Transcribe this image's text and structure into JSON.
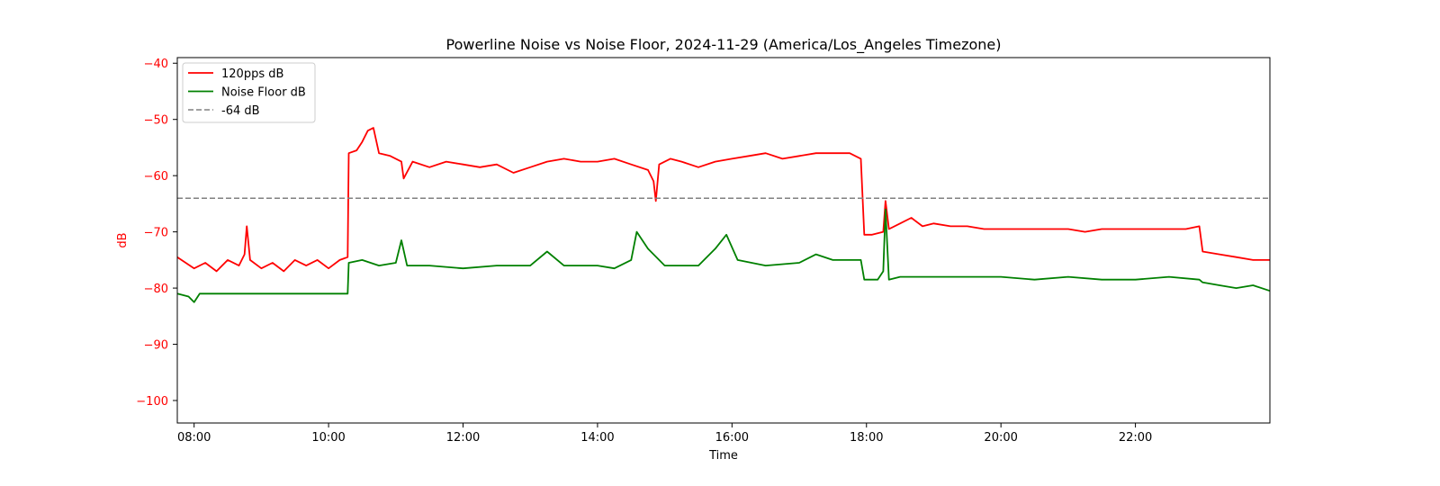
{
  "chart_data": {
    "type": "line",
    "title": "Powerline Noise vs Noise Floor, 2024-11-29 (America/Los_Angeles Timezone)",
    "xlabel": "Time",
    "ylabel": "dB",
    "xlim": [
      "07:45",
      "24:00"
    ],
    "ylim": [
      -104,
      -39
    ],
    "x_ticks": [
      "08:00",
      "10:00",
      "12:00",
      "14:00",
      "16:00",
      "18:00",
      "20:00",
      "22:00"
    ],
    "y_ticks": [
      -40,
      -50,
      -60,
      -70,
      -80,
      -90,
      -100
    ],
    "grid": false,
    "legend_position": "top-left",
    "ylabel_color": "#ff0000",
    "series": [
      {
        "name": "120pps dB",
        "color": "#ff0000",
        "style": "solid",
        "points": [
          [
            "07:45",
            -74.5
          ],
          [
            "08:00",
            -76.5
          ],
          [
            "08:10",
            -75.5
          ],
          [
            "08:20",
            -77
          ],
          [
            "08:30",
            -75
          ],
          [
            "08:40",
            -76
          ],
          [
            "08:45",
            -74
          ],
          [
            "08:47",
            -69
          ],
          [
            "08:50",
            -75
          ],
          [
            "09:00",
            -76.5
          ],
          [
            "09:10",
            -75.5
          ],
          [
            "09:20",
            -77
          ],
          [
            "09:30",
            -75
          ],
          [
            "09:40",
            -76
          ],
          [
            "09:50",
            -75
          ],
          [
            "10:00",
            -76.5
          ],
          [
            "10:10",
            -75
          ],
          [
            "10:17",
            -74.5
          ],
          [
            "10:18",
            -56
          ],
          [
            "10:25",
            -55.5
          ],
          [
            "10:30",
            -54
          ],
          [
            "10:35",
            -52
          ],
          [
            "10:40",
            -51.5
          ],
          [
            "10:45",
            -56
          ],
          [
            "10:55",
            -56.5
          ],
          [
            "11:05",
            -57.5
          ],
          [
            "11:07",
            -60.5
          ],
          [
            "11:15",
            -57.5
          ],
          [
            "11:30",
            -58.5
          ],
          [
            "11:45",
            -57.5
          ],
          [
            "12:00",
            -58
          ],
          [
            "12:15",
            -58.5
          ],
          [
            "12:30",
            -58
          ],
          [
            "12:45",
            -59.5
          ],
          [
            "13:00",
            -58.5
          ],
          [
            "13:15",
            -57.5
          ],
          [
            "13:30",
            -57
          ],
          [
            "13:45",
            -57.5
          ],
          [
            "14:00",
            -57.5
          ],
          [
            "14:15",
            -57
          ],
          [
            "14:30",
            -58
          ],
          [
            "14:45",
            -59
          ],
          [
            "14:50",
            -61
          ],
          [
            "14:52",
            -64.5
          ],
          [
            "14:55",
            -58
          ],
          [
            "15:05",
            -57
          ],
          [
            "15:15",
            -57.5
          ],
          [
            "15:30",
            -58.5
          ],
          [
            "15:45",
            -57.5
          ],
          [
            "16:00",
            -57
          ],
          [
            "16:15",
            -56.5
          ],
          [
            "16:30",
            -56
          ],
          [
            "16:45",
            -57
          ],
          [
            "17:00",
            -56.5
          ],
          [
            "17:15",
            -56
          ],
          [
            "17:30",
            -56
          ],
          [
            "17:45",
            -56
          ],
          [
            "17:55",
            -57
          ],
          [
            "17:58",
            -70.5
          ],
          [
            "18:05",
            -70.5
          ],
          [
            "18:15",
            -70
          ],
          [
            "18:17",
            -64.5
          ],
          [
            "18:20",
            -69.5
          ],
          [
            "18:30",
            -68.5
          ],
          [
            "18:40",
            -67.5
          ],
          [
            "18:50",
            -69
          ],
          [
            "19:00",
            -68.5
          ],
          [
            "19:15",
            -69
          ],
          [
            "19:30",
            -69
          ],
          [
            "19:45",
            -69.5
          ],
          [
            "20:00",
            -69.5
          ],
          [
            "20:15",
            -69.5
          ],
          [
            "20:30",
            -69.5
          ],
          [
            "20:45",
            -69.5
          ],
          [
            "21:00",
            -69.5
          ],
          [
            "21:15",
            -70
          ],
          [
            "21:30",
            -69.5
          ],
          [
            "21:45",
            -69.5
          ],
          [
            "22:00",
            -69.5
          ],
          [
            "22:15",
            -69.5
          ],
          [
            "22:30",
            -69.5
          ],
          [
            "22:45",
            -69.5
          ],
          [
            "22:57",
            -69
          ],
          [
            "23:00",
            -73.5
          ],
          [
            "23:15",
            -74
          ],
          [
            "23:30",
            -74.5
          ],
          [
            "23:45",
            -75
          ],
          [
            "24:00",
            -75
          ]
        ]
      },
      {
        "name": "Noise Floor dB",
        "color": "#008000",
        "style": "solid",
        "points": [
          [
            "07:45",
            -81
          ],
          [
            "07:55",
            -81.5
          ],
          [
            "08:00",
            -82.5
          ],
          [
            "08:05",
            -81
          ],
          [
            "08:30",
            -81
          ],
          [
            "09:00",
            -81
          ],
          [
            "09:30",
            -81
          ],
          [
            "10:00",
            -81
          ],
          [
            "10:17",
            -81
          ],
          [
            "10:18",
            -75.5
          ],
          [
            "10:30",
            -75
          ],
          [
            "10:45",
            -76
          ],
          [
            "11:00",
            -75.5
          ],
          [
            "11:05",
            -71.5
          ],
          [
            "11:10",
            -76
          ],
          [
            "11:30",
            -76
          ],
          [
            "12:00",
            -76.5
          ],
          [
            "12:30",
            -76
          ],
          [
            "13:00",
            -76
          ],
          [
            "13:15",
            -73.5
          ],
          [
            "13:30",
            -76
          ],
          [
            "14:00",
            -76
          ],
          [
            "14:15",
            -76.5
          ],
          [
            "14:30",
            -75
          ],
          [
            "14:35",
            -70
          ],
          [
            "14:45",
            -73
          ],
          [
            "15:00",
            -76
          ],
          [
            "15:30",
            -76
          ],
          [
            "15:45",
            -73
          ],
          [
            "15:55",
            -70.5
          ],
          [
            "16:05",
            -75
          ],
          [
            "16:30",
            -76
          ],
          [
            "17:00",
            -75.5
          ],
          [
            "17:15",
            -74
          ],
          [
            "17:30",
            -75
          ],
          [
            "17:55",
            -75
          ],
          [
            "17:58",
            -78.5
          ],
          [
            "18:10",
            -78.5
          ],
          [
            "18:15",
            -77
          ],
          [
            "18:17",
            -66
          ],
          [
            "18:20",
            -78.5
          ],
          [
            "18:30",
            -78
          ],
          [
            "19:00",
            -78
          ],
          [
            "19:30",
            -78
          ],
          [
            "20:00",
            -78
          ],
          [
            "20:30",
            -78.5
          ],
          [
            "21:00",
            -78
          ],
          [
            "21:30",
            -78.5
          ],
          [
            "22:00",
            -78.5
          ],
          [
            "22:30",
            -78
          ],
          [
            "22:57",
            -78.5
          ],
          [
            "23:00",
            -79
          ],
          [
            "23:15",
            -79.5
          ],
          [
            "23:30",
            -80
          ],
          [
            "23:45",
            -79.5
          ],
          [
            "24:00",
            -80.5
          ]
        ]
      },
      {
        "name": "-64 dB",
        "color": "#808080",
        "style": "dashed",
        "points": [
          [
            "07:45",
            -64
          ],
          [
            "24:00",
            -64
          ]
        ]
      }
    ]
  }
}
